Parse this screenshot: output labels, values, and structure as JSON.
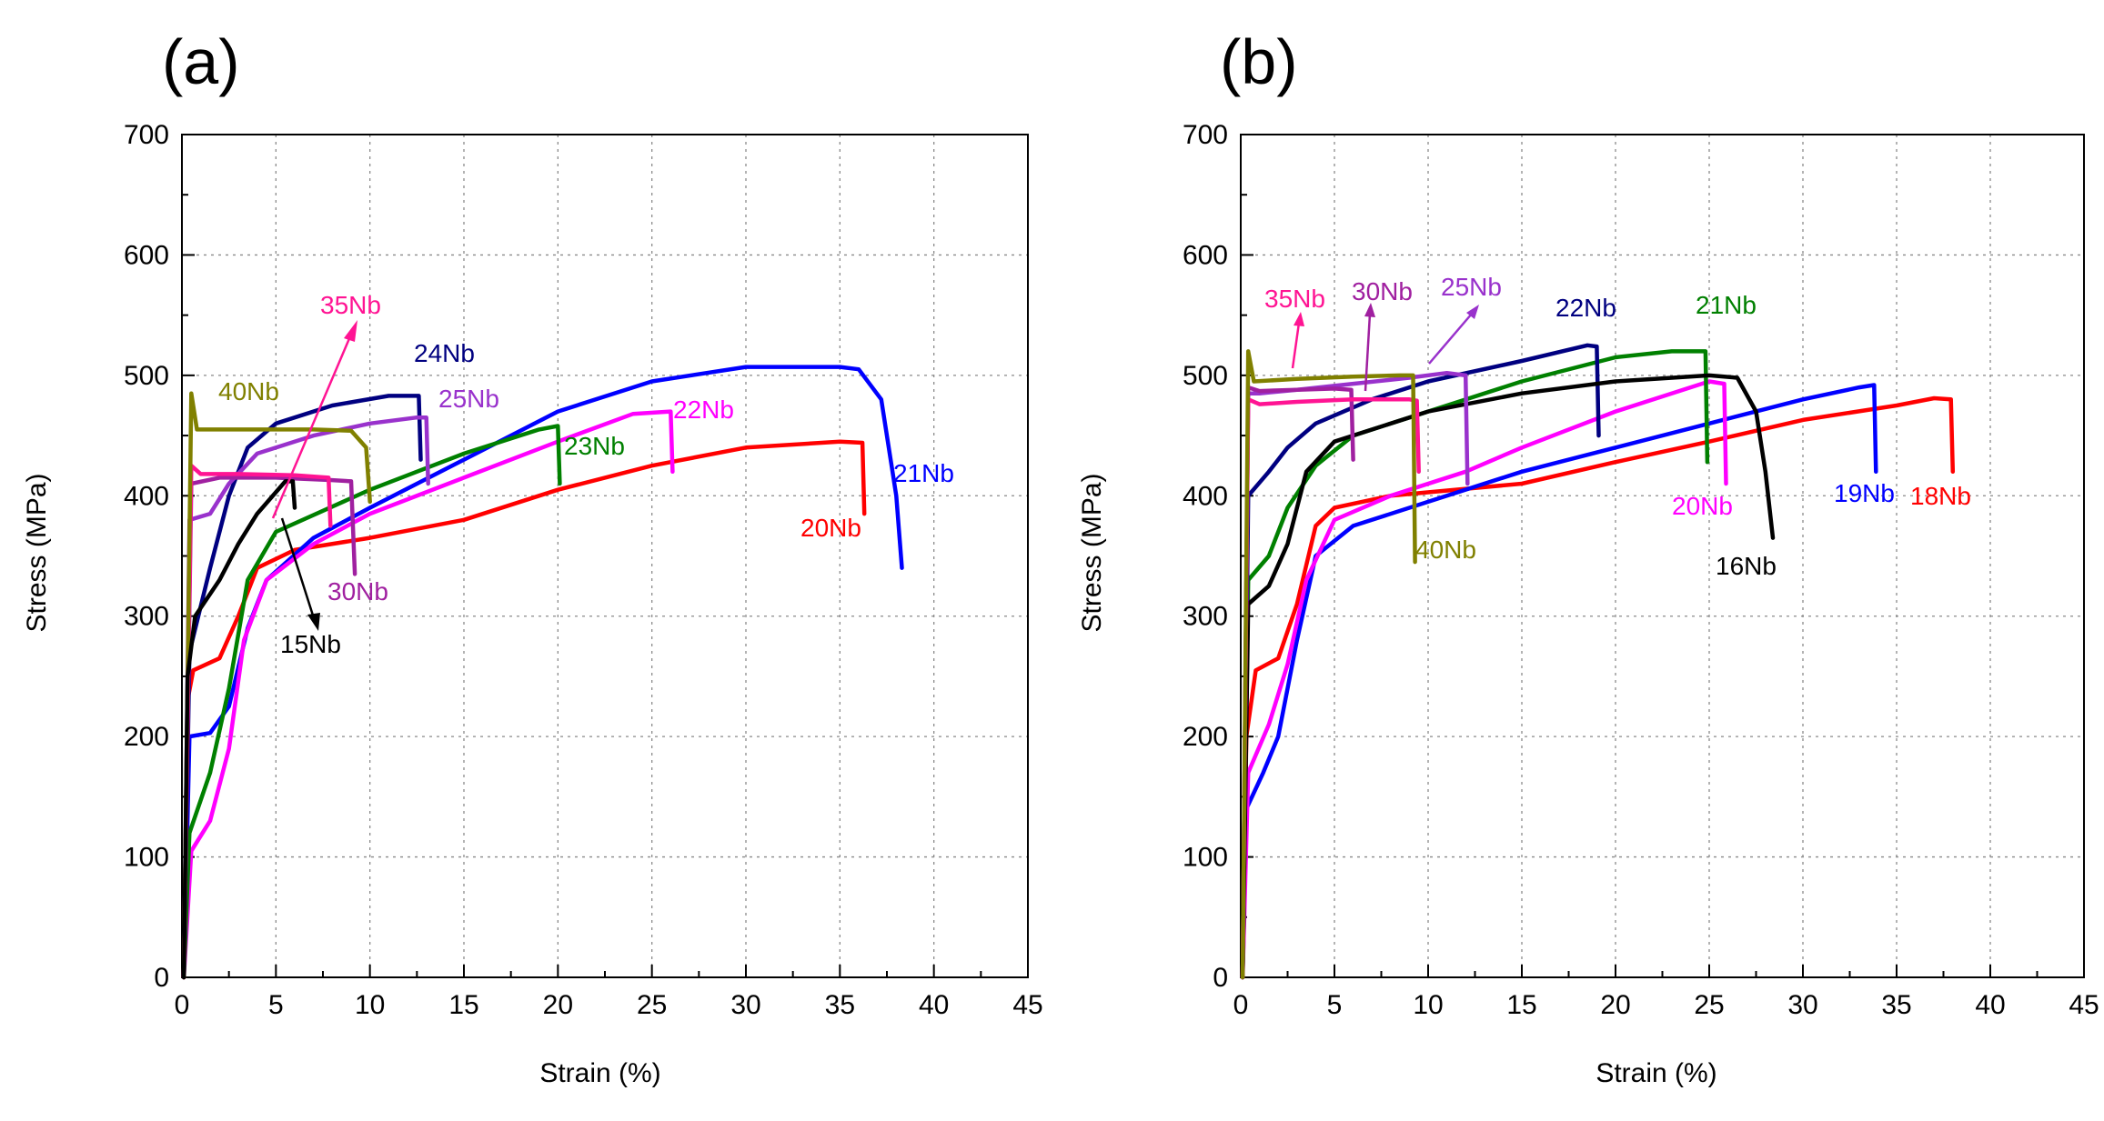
{
  "chart_data": [
    {
      "panel_label": "(a)",
      "type": "line",
      "xlabel": "Strain (%)",
      "ylabel": "Stress (MPa)",
      "xlim": [
        0,
        45
      ],
      "ylim": [
        0,
        700
      ],
      "xticks": [
        0,
        5,
        10,
        15,
        20,
        25,
        30,
        35,
        40,
        45
      ],
      "yticks": [
        0,
        100,
        200,
        300,
        400,
        500,
        600,
        700
      ],
      "grid": true,
      "series": [
        {
          "name": "20Nb",
          "color": "#ff0000",
          "points": [
            [
              0.1,
              0
            ],
            [
              0.3,
              230
            ],
            [
              0.6,
              255
            ],
            [
              2,
              265
            ],
            [
              3,
              300
            ],
            [
              4,
              340
            ],
            [
              6,
              355
            ],
            [
              10,
              365
            ],
            [
              15,
              380
            ],
            [
              20,
              405
            ],
            [
              25,
              425
            ],
            [
              30,
              440
            ],
            [
              35,
              445
            ],
            [
              36.2,
              444
            ],
            [
              36.3,
              385
            ]
          ]
        },
        {
          "name": "21Nb",
          "color": "#0000ff",
          "points": [
            [
              0.1,
              0
            ],
            [
              0.4,
              200
            ],
            [
              1.5,
              203
            ],
            [
              2.5,
              225
            ],
            [
              3.5,
              290
            ],
            [
              4.5,
              330
            ],
            [
              7,
              365
            ],
            [
              10,
              390
            ],
            [
              15,
              430
            ],
            [
              20,
              470
            ],
            [
              25,
              495
            ],
            [
              30,
              507
            ],
            [
              35,
              507
            ],
            [
              36,
              505
            ],
            [
              37.2,
              480
            ],
            [
              38,
              400
            ],
            [
              38.3,
              340
            ]
          ]
        },
        {
          "name": "22Nb",
          "color": "#ff00ff",
          "points": [
            [
              0.1,
              0
            ],
            [
              0.5,
              105
            ],
            [
              1.5,
              130
            ],
            [
              2.5,
              190
            ],
            [
              3.3,
              280
            ],
            [
              4.5,
              330
            ],
            [
              7,
              360
            ],
            [
              10,
              385
            ],
            [
              15,
              415
            ],
            [
              20,
              445
            ],
            [
              24,
              468
            ],
            [
              26,
              470
            ],
            [
              26.1,
              420
            ]
          ]
        },
        {
          "name": "23Nb",
          "color": "#008000",
          "points": [
            [
              0.1,
              0
            ],
            [
              0.4,
              120
            ],
            [
              1.5,
              170
            ],
            [
              2.5,
              240
            ],
            [
              3.5,
              330
            ],
            [
              5,
              370
            ],
            [
              10,
              405
            ],
            [
              15,
              435
            ],
            [
              19,
              455
            ],
            [
              20,
              458
            ],
            [
              20.1,
              410
            ]
          ]
        },
        {
          "name": "24Nb",
          "color": "#000080",
          "points": [
            [
              0.1,
              0
            ],
            [
              0.4,
              270
            ],
            [
              1.5,
              340
            ],
            [
              2.5,
              400
            ],
            [
              3.5,
              440
            ],
            [
              5,
              460
            ],
            [
              8,
              475
            ],
            [
              11,
              483
            ],
            [
              12.6,
              483
            ],
            [
              12.7,
              430
            ]
          ]
        },
        {
          "name": "25Nb",
          "color": "#9932cc",
          "points": [
            [
              0.1,
              0
            ],
            [
              0.4,
              380
            ],
            [
              1.5,
              385
            ],
            [
              2.5,
              410
            ],
            [
              4,
              435
            ],
            [
              7,
              450
            ],
            [
              10,
              460
            ],
            [
              12.5,
              465
            ],
            [
              13,
              465
            ],
            [
              13.1,
              410
            ]
          ]
        },
        {
          "name": "30Nb",
          "color": "#a020a0",
          "points": [
            [
              0.1,
              0
            ],
            [
              0.5,
              410
            ],
            [
              2,
              415
            ],
            [
              5,
              415
            ],
            [
              8,
              413
            ],
            [
              9,
              412
            ],
            [
              9.2,
              335
            ]
          ]
        },
        {
          "name": "35Nb",
          "color": "#ff1493",
          "points": [
            [
              0.1,
              0
            ],
            [
              0.5,
              425
            ],
            [
              1,
              418
            ],
            [
              3,
              418
            ],
            [
              6,
              417
            ],
            [
              7.8,
              415
            ],
            [
              7.9,
              375
            ]
          ]
        },
        {
          "name": "40Nb",
          "color": "#808000",
          "points": [
            [
              0.1,
              0
            ],
            [
              0.5,
              485
            ],
            [
              0.8,
              455
            ],
            [
              3,
              455
            ],
            [
              7,
              455
            ],
            [
              9,
              454
            ],
            [
              9.8,
              440
            ],
            [
              10,
              395
            ]
          ]
        },
        {
          "name": "15Nb",
          "color": "#000000",
          "points": [
            [
              0.1,
              0
            ],
            [
              0.3,
              250
            ],
            [
              0.7,
              300
            ],
            [
              2,
              330
            ],
            [
              3,
              360
            ],
            [
              4,
              385
            ],
            [
              5.5,
              412
            ],
            [
              5.9,
              412
            ],
            [
              6,
              390
            ]
          ]
        }
      ],
      "labels": [
        "35Nb",
        "24Nb",
        "40Nb",
        "25Nb",
        "22Nb",
        "23Nb",
        "21Nb",
        "20Nb",
        "30Nb",
        "15Nb"
      ]
    },
    {
      "panel_label": "(b)",
      "type": "line",
      "xlabel": "Strain (%)",
      "ylabel": "Stress (MPa)",
      "xlim": [
        0,
        45
      ],
      "ylim": [
        0,
        700
      ],
      "xticks": [
        0,
        5,
        10,
        15,
        20,
        25,
        30,
        35,
        40,
        45
      ],
      "yticks": [
        0,
        100,
        200,
        300,
        400,
        500,
        600,
        700
      ],
      "grid": true,
      "series": [
        {
          "name": "18Nb",
          "color": "#ff0000",
          "points": [
            [
              0.1,
              0
            ],
            [
              0.3,
              200
            ],
            [
              0.8,
              255
            ],
            [
              2,
              265
            ],
            [
              3,
              310
            ],
            [
              4,
              375
            ],
            [
              5,
              390
            ],
            [
              8,
              400
            ],
            [
              15,
              410
            ],
            [
              20,
              428
            ],
            [
              25,
              445
            ],
            [
              30,
              463
            ],
            [
              35,
              475
            ],
            [
              37,
              481
            ],
            [
              37.9,
              480
            ],
            [
              38,
              420
            ]
          ]
        },
        {
          "name": "19Nb",
          "color": "#0000ff",
          "points": [
            [
              0.1,
              0
            ],
            [
              0.3,
              140
            ],
            [
              1.2,
              170
            ],
            [
              2,
              200
            ],
            [
              3,
              280
            ],
            [
              4,
              350
            ],
            [
              6,
              375
            ],
            [
              10,
              395
            ],
            [
              15,
              420
            ],
            [
              20,
              440
            ],
            [
              25,
              460
            ],
            [
              30,
              480
            ],
            [
              33,
              490
            ],
            [
              33.8,
              492
            ],
            [
              33.9,
              420
            ]
          ]
        },
        {
          "name": "20Nb",
          "color": "#ff00ff",
          "points": [
            [
              0.1,
              0
            ],
            [
              0.4,
              170
            ],
            [
              1.5,
              210
            ],
            [
              2.5,
              260
            ],
            [
              3.5,
              330
            ],
            [
              5,
              380
            ],
            [
              8,
              400
            ],
            [
              12,
              420
            ],
            [
              15,
              440
            ],
            [
              20,
              470
            ],
            [
              24,
              490
            ],
            [
              25,
              495
            ],
            [
              25.8,
              493
            ],
            [
              25.9,
              410
            ]
          ]
        },
        {
          "name": "21Nb",
          "color": "#008000",
          "points": [
            [
              0.1,
              0
            ],
            [
              0.4,
              330
            ],
            [
              1.5,
              350
            ],
            [
              2.5,
              390
            ],
            [
              4,
              425
            ],
            [
              6,
              450
            ],
            [
              10,
              470
            ],
            [
              15,
              495
            ],
            [
              20,
              515
            ],
            [
              23,
              520
            ],
            [
              24.8,
              520
            ],
            [
              24.9,
              428
            ]
          ]
        },
        {
          "name": "22Nb",
          "color": "#000080",
          "points": [
            [
              0.1,
              0
            ],
            [
              0.4,
              400
            ],
            [
              1.5,
              420
            ],
            [
              2.5,
              440
            ],
            [
              4,
              460
            ],
            [
              7,
              480
            ],
            [
              10,
              495
            ],
            [
              15,
              512
            ],
            [
              18.5,
              525
            ],
            [
              19,
              524
            ],
            [
              19.1,
              450
            ]
          ]
        },
        {
          "name": "16Nb",
          "color": "#000000",
          "points": [
            [
              0.1,
              0
            ],
            [
              0.4,
              310
            ],
            [
              1.5,
              325
            ],
            [
              2.5,
              360
            ],
            [
              3.5,
              420
            ],
            [
              5,
              445
            ],
            [
              10,
              470
            ],
            [
              15,
              485
            ],
            [
              20,
              495
            ],
            [
              25,
              500
            ],
            [
              26.5,
              498
            ],
            [
              27.5,
              470
            ],
            [
              28,
              420
            ],
            [
              28.4,
              365
            ]
          ]
        },
        {
          "name": "25Nb",
          "color": "#9932cc",
          "points": [
            [
              0.1,
              0
            ],
            [
              0.4,
              485
            ],
            [
              1,
              485
            ],
            [
              3,
              488
            ],
            [
              6,
              493
            ],
            [
              9,
              498
            ],
            [
              11,
              502
            ],
            [
              12,
              500
            ],
            [
              12.1,
              410
            ]
          ]
        },
        {
          "name": "30Nb",
          "color": "#a020a0",
          "points": [
            [
              0.1,
              0
            ],
            [
              0.4,
              490
            ],
            [
              1,
              487
            ],
            [
              3,
              488
            ],
            [
              5,
              489
            ],
            [
              5.9,
              488
            ],
            [
              6,
              430
            ]
          ]
        },
        {
          "name": "35Nb",
          "color": "#ff1493",
          "points": [
            [
              0.1,
              0
            ],
            [
              0.4,
              480
            ],
            [
              1,
              476
            ],
            [
              3,
              478
            ],
            [
              6,
              480
            ],
            [
              9,
              480
            ],
            [
              9.4,
              479
            ],
            [
              9.5,
              420
            ]
          ]
        },
        {
          "name": "40Nb",
          "color": "#808000",
          "points": [
            [
              0.1,
              0
            ],
            [
              0.4,
              520
            ],
            [
              0.7,
              495
            ],
            [
              3,
              497
            ],
            [
              6,
              499
            ],
            [
              8.5,
              500
            ],
            [
              9.2,
              500
            ],
            [
              9.3,
              345
            ]
          ]
        }
      ],
      "labels": [
        "35Nb",
        "30Nb",
        "25Nb",
        "22Nb",
        "21Nb",
        "40Nb",
        "20Nb",
        "16Nb",
        "19Nb",
        "18Nb"
      ]
    }
  ]
}
